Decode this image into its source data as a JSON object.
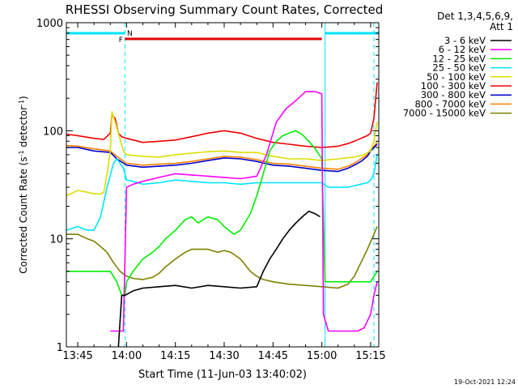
{
  "chart_data": {
    "type": "line",
    "title": "RHESSI Observing Summary Count Rates, Corrected",
    "xlabel": "Start Time (11-Jun-03 13:40:02)",
    "ylabel": "Corrected Count Rate (s⁻¹ detector⁻¹)",
    "ylabel_parts": [
      "Corrected Count Rate (s",
      "-1",
      " detector",
      "-1",
      ")"
    ],
    "yscale": "log",
    "xlim": [
      41.5,
      137.5
    ],
    "ylim": [
      1,
      1000
    ],
    "x_ticks": [
      {
        "x": 45,
        "label": "13:45"
      },
      {
        "x": 60,
        "label": "14:00"
      },
      {
        "x": 75,
        "label": "14:15"
      },
      {
        "x": 90,
        "label": "14:30"
      },
      {
        "x": 105,
        "label": "14:45"
      },
      {
        "x": 120,
        "label": "15:00"
      },
      {
        "x": 135,
        "label": "15:15"
      }
    ],
    "y_ticks": [
      {
        "y": 1,
        "label": "1"
      },
      {
        "y": 10,
        "label": "10"
      },
      {
        "y": 100,
        "label": "100"
      },
      {
        "y": 1000,
        "label": "1000"
      }
    ],
    "legend_header": [
      "Det 1,3,4,5,6,9,",
      "Att 1"
    ],
    "legend_position": "right",
    "timestamp": "19-Oct-2021 12:24",
    "flags": [
      {
        "name": "N",
        "label": "N",
        "color": "#00e5ff",
        "segments": [
          [
            41.5,
            59.5
          ],
          [
            121,
            137.5
          ]
        ]
      },
      {
        "name": "F",
        "label": "F",
        "color": "#e00000",
        "segments": [
          [
            59.5,
            120
          ]
        ]
      }
    ],
    "vlines_dashed": [
      59.5,
      136
    ],
    "vlines_solid": [
      121
    ],
    "series": [
      {
        "name": "3 - 6 keV",
        "color": "#000000",
        "x": [
          57.5,
          58.5,
          59.5,
          62,
          65,
          70,
          75,
          80,
          85,
          90,
          95,
          100,
          102,
          104,
          106,
          108,
          110,
          112,
          114,
          116,
          118,
          119.5
        ],
        "y": [
          1,
          3,
          3,
          3.3,
          3.5,
          3.6,
          3.7,
          3.5,
          3.7,
          3.6,
          3.5,
          3.6,
          5,
          6.5,
          8,
          10,
          12,
          14,
          16,
          18,
          17,
          16
        ]
      },
      {
        "name": "6 - 12 keV",
        "color": "#ff00ff",
        "x": [
          55,
          56.5,
          58,
          59,
          60,
          62,
          65,
          70,
          75,
          80,
          85,
          90,
          95,
          100,
          103,
          106,
          109,
          112,
          115,
          118,
          120,
          120.5,
          122,
          125,
          128,
          131,
          133,
          135,
          136,
          137
        ],
        "y": [
          1.4,
          1.4,
          1.4,
          1.4,
          30,
          32,
          34,
          37,
          40,
          39,
          38,
          37,
          36,
          38,
          60,
          120,
          160,
          190,
          230,
          230,
          220,
          2,
          1.4,
          1.4,
          1.4,
          1.4,
          1.5,
          2,
          3,
          4
        ]
      },
      {
        "name": "12 - 25 keV",
        "color": "#00ee00",
        "x": [
          41.5,
          45,
          50,
          55,
          57,
          58.5,
          59.5,
          60,
          62,
          65,
          68,
          70,
          72,
          75,
          78,
          80,
          82,
          85,
          88,
          90,
          93,
          95,
          98,
          100,
          102,
          104,
          106,
          108,
          110,
          112,
          114,
          116,
          118,
          120,
          121,
          125,
          130,
          135,
          137
        ],
        "y": [
          5,
          5,
          5,
          5,
          4,
          3,
          3,
          4,
          5,
          6.5,
          7.5,
          8.5,
          10,
          12,
          15,
          16,
          14,
          16,
          15,
          13,
          11,
          12,
          17,
          25,
          40,
          65,
          80,
          90,
          95,
          100,
          92,
          80,
          68,
          55,
          4,
          4,
          4,
          4,
          5
        ]
      },
      {
        "name": "25 - 50 keV",
        "color": "#00e5ff",
        "x": [
          41.5,
          45,
          48,
          50,
          52,
          54,
          56,
          57,
          58,
          59,
          60,
          62,
          65,
          70,
          75,
          80,
          85,
          90,
          95,
          100,
          105,
          110,
          115,
          120,
          122,
          125,
          128,
          130,
          132,
          134,
          135,
          136,
          137
        ],
        "y": [
          12,
          13,
          12,
          12,
          16,
          30,
          50,
          55,
          50,
          45,
          35,
          34,
          32,
          33,
          35,
          34,
          33,
          33,
          32,
          33,
          33,
          33,
          33,
          33,
          30,
          30,
          30,
          31,
          32,
          33,
          35,
          40,
          60
        ]
      },
      {
        "name": "50 - 100 keV",
        "color": "#dddd00",
        "x": [
          41.5,
          45,
          48,
          50,
          52,
          53,
          54,
          55,
          55.5,
          56.5,
          57.5,
          59,
          60,
          65,
          70,
          75,
          80,
          85,
          90,
          95,
          100,
          105,
          110,
          115,
          120,
          125,
          130,
          133,
          135,
          136,
          137
        ],
        "y": [
          25,
          28,
          27,
          26,
          26,
          27,
          40,
          65,
          150,
          120,
          95,
          65,
          60,
          58,
          57,
          60,
          62,
          64,
          65,
          63,
          63,
          58,
          55,
          55,
          53,
          55,
          57,
          60,
          65,
          80,
          120
        ]
      },
      {
        "name": "100 - 300 keV",
        "color": "#ee0000",
        "x": [
          41.5,
          45,
          50,
          53,
          55,
          55.5,
          56.5,
          57.5,
          58.5,
          60,
          65,
          70,
          75,
          80,
          85,
          90,
          95,
          100,
          105,
          110,
          115,
          120,
          125,
          128,
          130,
          132,
          134,
          135,
          136,
          137
        ],
        "y": [
          93,
          90,
          85,
          83,
          95,
          140,
          130,
          95,
          88,
          85,
          78,
          80,
          82,
          88,
          95,
          100,
          95,
          85,
          78,
          75,
          72,
          70,
          72,
          76,
          80,
          85,
          90,
          95,
          130,
          280
        ]
      },
      {
        "name": "300 - 800 keV",
        "color": "#0000cc",
        "x": [
          41.5,
          45,
          50,
          55,
          57,
          60,
          65,
          70,
          75,
          80,
          85,
          90,
          95,
          100,
          105,
          110,
          115,
          120,
          125,
          128,
          130,
          132,
          134,
          135,
          136,
          137
        ],
        "y": [
          70,
          70,
          65,
          63,
          55,
          48,
          46,
          47,
          48,
          50,
          53,
          56,
          55,
          52,
          48,
          47,
          45,
          43,
          42,
          45,
          48,
          52,
          58,
          65,
          70,
          75
        ]
      },
      {
        "name": "800 - 7000 keV",
        "color": "#ff8000",
        "x": [
          41.5,
          45,
          50,
          55,
          57,
          60,
          65,
          70,
          75,
          80,
          85,
          90,
          95,
          100,
          105,
          110,
          115,
          120,
          125,
          128,
          130,
          132,
          134,
          135,
          136,
          137
        ],
        "y": [
          73,
          72,
          68,
          65,
          58,
          50,
          48,
          49,
          50,
          52,
          55,
          58,
          57,
          54,
          50,
          49,
          47,
          45,
          44,
          47,
          50,
          55,
          60,
          67,
          72,
          78
        ]
      },
      {
        "name": "7000 - 15000 keV",
        "color": "#808000",
        "x": [
          41.5,
          45,
          48,
          50,
          52,
          54,
          56,
          58,
          60,
          62,
          65,
          68,
          70,
          72,
          75,
          78,
          80,
          82,
          85,
          88,
          90,
          92,
          95,
          98,
          100,
          102,
          105,
          110,
          115,
          120,
          125,
          128,
          130,
          132,
          134,
          136,
          137
        ],
        "y": [
          11,
          11,
          10,
          9.5,
          8.5,
          7.5,
          6,
          5,
          4.5,
          4.3,
          4.2,
          4.4,
          4.8,
          5.5,
          6.5,
          7.5,
          8,
          8,
          8,
          7.5,
          7.8,
          7.5,
          6.5,
          5,
          4.5,
          4.2,
          4,
          3.8,
          3.7,
          3.6,
          3.5,
          3.8,
          4.5,
          6,
          8,
          11,
          13
        ]
      }
    ]
  }
}
